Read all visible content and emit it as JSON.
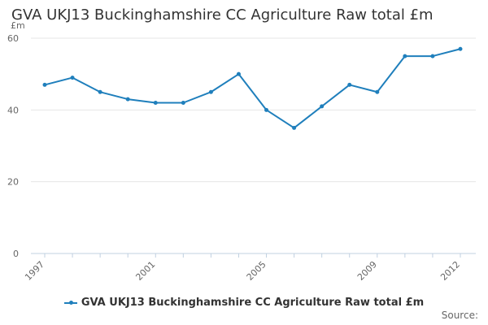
{
  "chart_data": {
    "type": "line",
    "title": "GVA UKJ13 Buckinghamshire CC Agriculture Raw total £m",
    "ylabel": "£m",
    "xlabel": "",
    "x": [
      1997,
      1998,
      1999,
      2000,
      2001,
      2002,
      2003,
      2004,
      2005,
      2006,
      2007,
      2008,
      2009,
      2010,
      2011,
      2012
    ],
    "x_tick_labels": [
      "1997",
      "2001",
      "2005",
      "2009",
      "2012"
    ],
    "y_ticks": [
      0,
      20,
      40,
      60
    ],
    "ylim": [
      0,
      60
    ],
    "grid": true,
    "legend_position": "bottom",
    "series": [
      {
        "name": "GVA UKJ13 Buckinghamshire CC Agriculture Raw total £m",
        "color": "#1f7fbc",
        "values": [
          47,
          49,
          45,
          43,
          42,
          42,
          45,
          50,
          40,
          35,
          41,
          47,
          45,
          55,
          55,
          57
        ]
      }
    ]
  },
  "source_label": "Source:"
}
